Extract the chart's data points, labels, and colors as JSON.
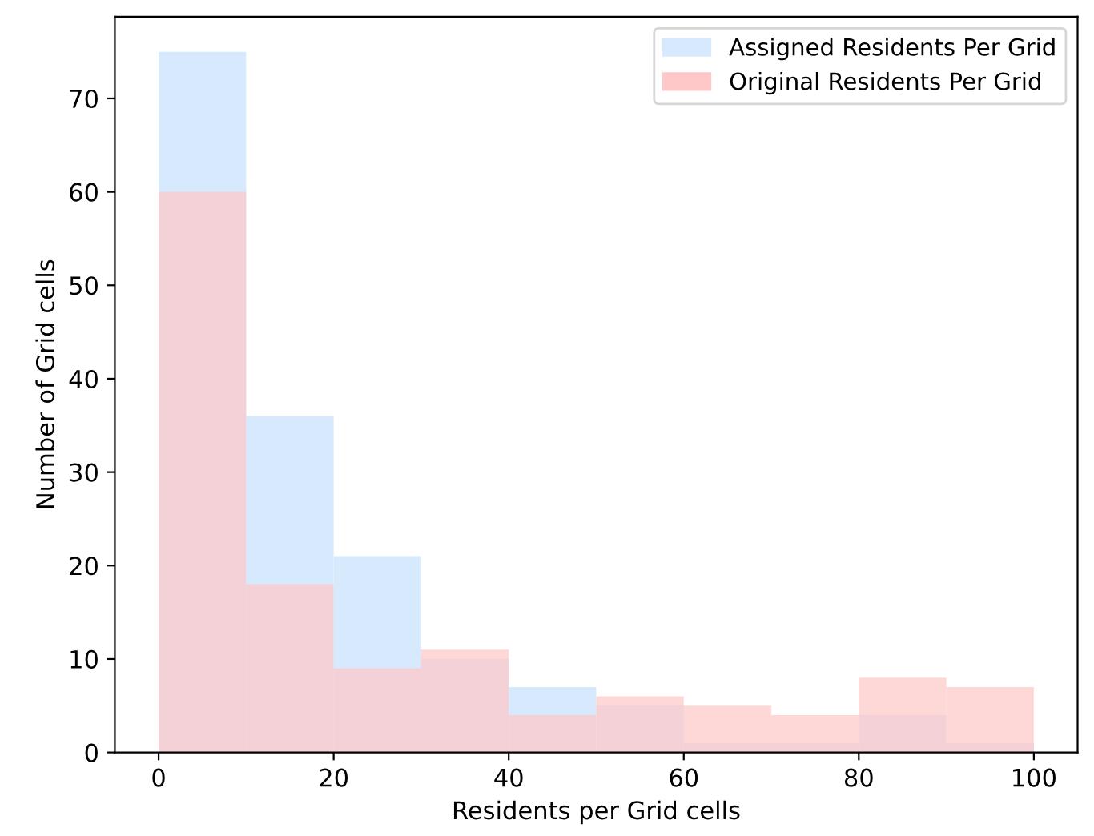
{
  "chart_data": {
    "type": "histogram",
    "xlabel": "Residents per Grid cells",
    "ylabel": "Number of Grid cells",
    "bins": [
      0,
      10,
      20,
      30,
      40,
      50,
      60,
      70,
      80,
      90,
      100
    ],
    "series": [
      {
        "name": "Assigned Residents Per Grid",
        "color": "#d6e9fd",
        "values": [
          75,
          36,
          21,
          10,
          7,
          5,
          1,
          1,
          4,
          1
        ]
      },
      {
        "name": "Original Residents Per Grid",
        "color": "#fec8c8",
        "values": [
          60,
          18,
          9,
          11,
          4,
          6,
          5,
          4,
          8,
          7
        ]
      }
    ],
    "xlim": [
      -5,
      105
    ],
    "xticks": [
      0,
      20,
      40,
      60,
      80,
      100
    ],
    "ylim": [
      0,
      78.75
    ],
    "yticks": [
      0,
      10,
      20,
      30,
      40,
      50,
      60,
      70
    ],
    "grid": false,
    "legend": "top right"
  }
}
